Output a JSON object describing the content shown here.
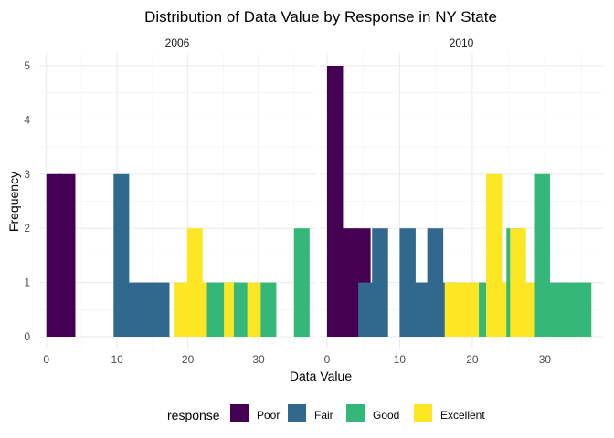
{
  "chart_data": {
    "type": "bar",
    "title": "Distribution of Data Value by Response in NY State",
    "xlabel": "Data Value",
    "ylabel": "Frequency",
    "xlim": [
      -1,
      38
    ],
    "ylim": [
      0,
      5
    ],
    "x_ticks": [
      0,
      10,
      20,
      30
    ],
    "y_ticks": [
      0,
      1,
      2,
      3,
      4,
      5
    ],
    "grid": true,
    "legend_position": "bottom",
    "legend_title": "response",
    "series": [
      {
        "name": "Poor",
        "color": "#440154"
      },
      {
        "name": "Fair",
        "color": "#31688E"
      },
      {
        "name": "Good",
        "color": "#35B779"
      },
      {
        "name": "Excellent",
        "color": "#FDE725"
      }
    ],
    "panels": [
      {
        "label": "2006",
        "bars": [
          {
            "series": "Poor",
            "x": 1.1,
            "count": 3
          },
          {
            "series": "Poor",
            "x": 3.0,
            "count": 3
          },
          {
            "series": "Fair",
            "x": 10.6,
            "count": 3
          },
          {
            "series": "Fair",
            "x": 12.5,
            "count": 1
          },
          {
            "series": "Fair",
            "x": 14.4,
            "count": 1
          },
          {
            "series": "Fair",
            "x": 16.3,
            "count": 1
          },
          {
            "series": "Excellent",
            "x": 19.1,
            "count": 1
          },
          {
            "series": "Excellent",
            "x": 21.0,
            "count": 2
          },
          {
            "series": "Excellent",
            "x": 22.9,
            "count": 1
          },
          {
            "series": "Good",
            "x": 23.8,
            "count": 1
          },
          {
            "series": "Good",
            "x": 25.7,
            "count": 1
          },
          {
            "series": "Excellent",
            "x": 26.2,
            "count": 1
          },
          {
            "series": "Good",
            "x": 27.6,
            "count": 1
          },
          {
            "series": "Excellent",
            "x": 29.5,
            "count": 1
          },
          {
            "series": "Good",
            "x": 31.4,
            "count": 1
          },
          {
            "series": "Good",
            "x": 36.1,
            "count": 2
          }
        ]
      },
      {
        "label": "2010",
        "bars": [
          {
            "series": "Poor",
            "x": 1.1,
            "count": 5
          },
          {
            "series": "Poor",
            "x": 3.0,
            "count": 2
          },
          {
            "series": "Poor",
            "x": 4.9,
            "count": 2
          },
          {
            "series": "Fair",
            "x": 5.4,
            "count": 1
          },
          {
            "series": "Fair",
            "x": 7.3,
            "count": 2
          },
          {
            "series": "Fair",
            "x": 11.1,
            "count": 2
          },
          {
            "series": "Fair",
            "x": 13.0,
            "count": 1
          },
          {
            "series": "Fair",
            "x": 14.9,
            "count": 2
          },
          {
            "series": "Fair",
            "x": 16.8,
            "count": 1
          },
          {
            "series": "Excellent",
            "x": 17.3,
            "count": 1
          },
          {
            "series": "Excellent",
            "x": 19.2,
            "count": 1
          },
          {
            "series": "Excellent",
            "x": 21.1,
            "count": 1
          },
          {
            "series": "Good",
            "x": 22.0,
            "count": 1
          },
          {
            "series": "Excellent",
            "x": 23.0,
            "count": 3
          },
          {
            "series": "Excellent",
            "x": 24.9,
            "count": 1
          },
          {
            "series": "Good",
            "x": 25.8,
            "count": 2
          },
          {
            "series": "Excellent",
            "x": 26.3,
            "count": 2
          },
          {
            "series": "Excellent",
            "x": 28.2,
            "count": 1
          },
          {
            "series": "Good",
            "x": 29.6,
            "count": 3
          },
          {
            "series": "Good",
            "x": 31.5,
            "count": 1
          },
          {
            "series": "Good",
            "x": 33.4,
            "count": 1
          },
          {
            "series": "Good",
            "x": 35.3,
            "count": 1
          }
        ]
      }
    ]
  }
}
